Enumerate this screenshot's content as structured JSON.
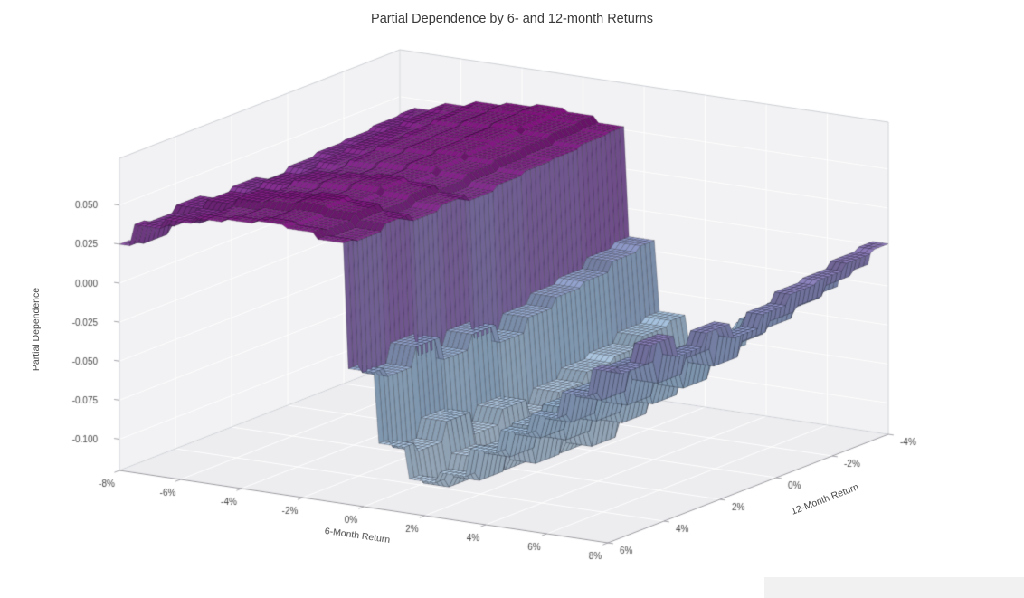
{
  "page": {
    "background": "#ffffff"
  },
  "chart_data": {
    "type": "surface",
    "title": "Partial Dependence by 6- and 12-month Returns",
    "xlabel": "6-Month Return",
    "ylabel": "12-Month Return",
    "zlabel": "Partial Dependence",
    "x_percent": [
      -8,
      -7,
      -6,
      -5,
      -4,
      -3,
      -2,
      -1,
      0,
      1,
      2,
      3,
      4,
      5,
      6,
      7,
      8
    ],
    "y_percent": [
      -4,
      -3,
      -2,
      -1,
      0,
      1,
      2,
      3,
      4,
      5,
      6
    ],
    "z": [
      [
        0.03,
        0.044,
        0.05,
        0.054,
        0.056,
        0.058,
        0.056,
        0.052,
        -0.018,
        -0.063,
        -0.083,
        -0.076,
        -0.058,
        -0.043,
        -0.03,
        -0.013,
        0.002
      ],
      [
        0.029,
        0.043,
        0.049,
        0.053,
        0.055,
        0.057,
        0.055,
        0.051,
        -0.021,
        -0.066,
        -0.086,
        -0.079,
        -0.061,
        -0.046,
        -0.033,
        -0.016,
        0.0
      ],
      [
        0.027,
        0.041,
        0.047,
        0.051,
        0.053,
        0.055,
        0.053,
        0.049,
        -0.027,
        -0.072,
        -0.092,
        -0.085,
        -0.067,
        -0.052,
        -0.039,
        -0.022,
        -0.004
      ],
      [
        0.026,
        0.04,
        0.046,
        0.05,
        0.052,
        0.054,
        0.052,
        0.048,
        -0.03,
        -0.075,
        -0.095,
        -0.088,
        -0.07,
        -0.055,
        -0.042,
        -0.025,
        -0.006
      ],
      [
        0.024,
        0.038,
        0.044,
        0.048,
        0.05,
        0.052,
        0.05,
        0.046,
        -0.036,
        -0.081,
        -0.101,
        -0.094,
        -0.076,
        -0.061,
        -0.048,
        -0.031,
        -0.012
      ],
      [
        0.021,
        0.035,
        0.041,
        0.045,
        0.047,
        0.049,
        0.047,
        0.043,
        -0.045,
        -0.09,
        -0.11,
        -0.103,
        -0.085,
        -0.07,
        -0.057,
        -0.04,
        -0.02
      ],
      [
        0.025,
        0.039,
        0.045,
        0.049,
        0.051,
        0.053,
        0.051,
        0.047,
        -0.033,
        -0.078,
        -0.098,
        -0.091,
        -0.073,
        -0.058,
        -0.045,
        -0.028,
        -0.01
      ],
      [
        0.022,
        0.036,
        0.042,
        0.046,
        0.048,
        0.05,
        0.048,
        0.044,
        -0.042,
        -0.087,
        -0.107,
        -0.1,
        -0.082,
        -0.067,
        -0.054,
        -0.037,
        -0.018
      ],
      [
        0.027,
        0.041,
        0.047,
        0.051,
        0.053,
        0.055,
        0.053,
        0.049,
        -0.027,
        -0.072,
        -0.092,
        -0.085,
        -0.067,
        -0.052,
        -0.039,
        -0.022,
        -0.004
      ],
      [
        0.023,
        0.037,
        0.043,
        0.047,
        0.049,
        0.051,
        0.049,
        0.045,
        -0.039,
        -0.084,
        -0.104,
        -0.097,
        -0.079,
        -0.064,
        -0.051,
        -0.034,
        -0.015
      ],
      [
        0.025,
        0.039,
        0.045,
        0.049,
        0.051,
        0.053,
        0.051,
        0.047,
        -0.033,
        -0.078,
        -0.098,
        -0.091,
        -0.073,
        -0.058,
        -0.045,
        -0.028,
        -0.01
      ]
    ],
    "x_ticks": {
      "values": [
        -8,
        -6,
        -4,
        -2,
        0,
        2,
        4,
        6,
        8
      ],
      "labels": [
        "-8%",
        "-6%",
        "-4%",
        "-2%",
        "0%",
        "2%",
        "4%",
        "6%",
        "8%"
      ]
    },
    "y_ticks": {
      "values": [
        6,
        4,
        2,
        0,
        -2,
        -4
      ],
      "labels": [
        "6%",
        "4%",
        "2%",
        "0%",
        "-2%",
        "-4%"
      ]
    },
    "z_ticks": {
      "values": [
        0.05,
        0.025,
        0.0,
        -0.025,
        -0.05,
        -0.075,
        -0.1
      ],
      "labels": [
        "0.050",
        "0.025",
        "0.000",
        "-0.025",
        "-0.050",
        "-0.075",
        "-0.100"
      ]
    },
    "zlim_box": [
      -0.12,
      0.08
    ],
    "view": {
      "azim_deg": -60,
      "elev_deg": 13
    },
    "colormap_stops": [
      [
        0.0,
        "#bfd3e6"
      ],
      [
        0.35,
        "#9ebcda"
      ],
      [
        0.55,
        "#8c96c6"
      ],
      [
        0.72,
        "#8c6bb1"
      ],
      [
        0.86,
        "#88419d"
      ],
      [
        1.0,
        "#810f7c"
      ]
    ],
    "colors": {
      "pane": "#f2f2f4",
      "floor": "#ededf0",
      "grid_line": "#ffffff",
      "box_edge": "#cdd0d4",
      "axis_line": "#9a9aa0",
      "facet_edge": "rgba(15,15,25,0.55)",
      "tick_text": "#474747",
      "title_text": "#3a3a3a"
    },
    "grid": true
  }
}
